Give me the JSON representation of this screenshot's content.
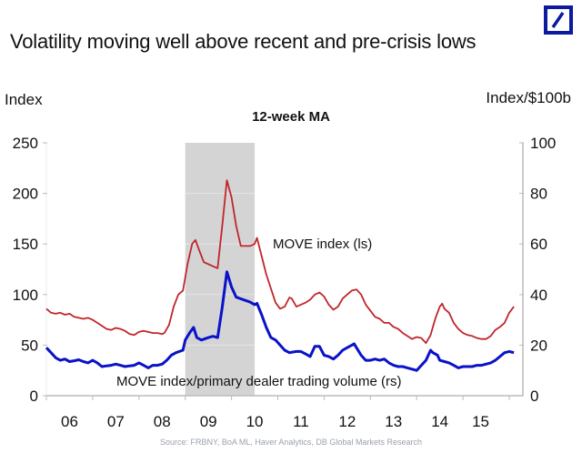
{
  "header": {
    "title": "Volatility moving well above recent and pre-crisis lows",
    "logo": "deutsche-bank-logo"
  },
  "footer": {
    "source": "Source: FRBNY, BoA ML, Haver Analytics, DB Global Markets Research"
  },
  "chart_data": {
    "type": "line",
    "title": "12-week MA",
    "ylabel_left": "Index",
    "ylabel_right": "Index/$100b",
    "ylim_left": [
      0,
      250
    ],
    "ylim_right": [
      0,
      100
    ],
    "yticks_left": [
      "0",
      "50",
      "100",
      "150",
      "200",
      "250"
    ],
    "yticks_right": [
      "0",
      "20",
      "40",
      "60",
      "80",
      "100"
    ],
    "xlim": [
      2005.0,
      2015.3
    ],
    "xticks": [
      "06",
      "07",
      "08",
      "09",
      "10",
      "11",
      "12",
      "13",
      "14",
      "15"
    ],
    "shaded_region": {
      "from": 2008.0,
      "to": 2009.5,
      "color": "#d4d4d4",
      "label": "crisis"
    },
    "grid": false,
    "series": [
      {
        "name": "MOVE index (ls)",
        "axis": "left",
        "color": "#c0262b",
        "annotation": "MOVE index (ls)",
        "points": [
          [
            2005.0,
            86
          ],
          [
            2005.1,
            82
          ],
          [
            2005.2,
            81
          ],
          [
            2005.3,
            82
          ],
          [
            2005.4,
            80
          ],
          [
            2005.5,
            81
          ],
          [
            2005.6,
            78
          ],
          [
            2005.7,
            77
          ],
          [
            2005.8,
            76
          ],
          [
            2005.9,
            77
          ],
          [
            2006.0,
            75
          ],
          [
            2006.1,
            72
          ],
          [
            2006.2,
            69
          ],
          [
            2006.3,
            66
          ],
          [
            2006.4,
            65
          ],
          [
            2006.5,
            67
          ],
          [
            2006.6,
            66
          ],
          [
            2006.7,
            64
          ],
          [
            2006.8,
            61
          ],
          [
            2006.9,
            60
          ],
          [
            2007.0,
            63
          ],
          [
            2007.1,
            64
          ],
          [
            2007.2,
            63
          ],
          [
            2007.3,
            62
          ],
          [
            2007.4,
            62
          ],
          [
            2007.5,
            61
          ],
          [
            2007.55,
            62
          ],
          [
            2007.65,
            70
          ],
          [
            2007.75,
            88
          ],
          [
            2007.85,
            100
          ],
          [
            2007.95,
            104
          ],
          [
            2008.05,
            130
          ],
          [
            2008.15,
            150
          ],
          [
            2008.22,
            154
          ],
          [
            2008.3,
            144
          ],
          [
            2008.4,
            132
          ],
          [
            2008.5,
            130
          ],
          [
            2008.6,
            128
          ],
          [
            2008.7,
            126
          ],
          [
            2008.8,
            168
          ],
          [
            2008.9,
            213
          ],
          [
            2009.0,
            196
          ],
          [
            2009.1,
            168
          ],
          [
            2009.2,
            148
          ],
          [
            2009.3,
            148
          ],
          [
            2009.4,
            148
          ],
          [
            2009.5,
            150
          ],
          [
            2009.55,
            156
          ],
          [
            2009.65,
            138
          ],
          [
            2009.75,
            120
          ],
          [
            2009.85,
            106
          ],
          [
            2009.95,
            92
          ],
          [
            2010.05,
            86
          ],
          [
            2010.15,
            88
          ],
          [
            2010.25,
            97
          ],
          [
            2010.3,
            96
          ],
          [
            2010.4,
            88
          ],
          [
            2010.5,
            90
          ],
          [
            2010.6,
            92
          ],
          [
            2010.7,
            95
          ],
          [
            2010.8,
            100
          ],
          [
            2010.9,
            102
          ],
          [
            2011.0,
            98
          ],
          [
            2011.1,
            90
          ],
          [
            2011.2,
            85
          ],
          [
            2011.3,
            88
          ],
          [
            2011.4,
            96
          ],
          [
            2011.5,
            100
          ],
          [
            2011.6,
            104
          ],
          [
            2011.7,
            105
          ],
          [
            2011.8,
            100
          ],
          [
            2011.9,
            90
          ],
          [
            2012.0,
            84
          ],
          [
            2012.1,
            78
          ],
          [
            2012.2,
            76
          ],
          [
            2012.3,
            72
          ],
          [
            2012.4,
            72
          ],
          [
            2012.5,
            68
          ],
          [
            2012.6,
            66
          ],
          [
            2012.7,
            62
          ],
          [
            2012.8,
            59
          ],
          [
            2012.9,
            56
          ],
          [
            2013.0,
            58
          ],
          [
            2013.1,
            57
          ],
          [
            2013.2,
            52
          ],
          [
            2013.3,
            60
          ],
          [
            2013.4,
            76
          ],
          [
            2013.5,
            88
          ],
          [
            2013.55,
            91
          ],
          [
            2013.6,
            86
          ],
          [
            2013.7,
            82
          ],
          [
            2013.8,
            72
          ],
          [
            2013.9,
            66
          ],
          [
            2014.0,
            62
          ],
          [
            2014.1,
            60
          ],
          [
            2014.2,
            59
          ],
          [
            2014.3,
            57
          ],
          [
            2014.4,
            56
          ],
          [
            2014.5,
            56
          ],
          [
            2014.6,
            59
          ],
          [
            2014.7,
            65
          ],
          [
            2014.8,
            68
          ],
          [
            2014.9,
            72
          ],
          [
            2015.0,
            82
          ],
          [
            2015.1,
            88
          ]
        ]
      },
      {
        "name": "MOVE index/primary dealer trading volume (rs)",
        "axis": "right",
        "color": "#0a12c8",
        "annotation": "MOVE index/primary dealer trading volume (rs)",
        "points": [
          [
            2005.0,
            19
          ],
          [
            2005.1,
            17
          ],
          [
            2005.2,
            15
          ],
          [
            2005.3,
            14
          ],
          [
            2005.4,
            14.5
          ],
          [
            2005.5,
            13.5
          ],
          [
            2005.6,
            13.8
          ],
          [
            2005.7,
            14.2
          ],
          [
            2005.8,
            13.5
          ],
          [
            2005.9,
            13
          ],
          [
            2006.0,
            14
          ],
          [
            2006.1,
            13
          ],
          [
            2006.2,
            11.5
          ],
          [
            2006.3,
            11.8
          ],
          [
            2006.4,
            12
          ],
          [
            2006.5,
            12.5
          ],
          [
            2006.6,
            12
          ],
          [
            2006.7,
            11.5
          ],
          [
            2006.8,
            11.8
          ],
          [
            2006.9,
            12
          ],
          [
            2007.0,
            13
          ],
          [
            2007.1,
            12
          ],
          [
            2007.2,
            11
          ],
          [
            2007.3,
            12
          ],
          [
            2007.4,
            12
          ],
          [
            2007.5,
            12.5
          ],
          [
            2007.6,
            14
          ],
          [
            2007.7,
            16
          ],
          [
            2007.8,
            17
          ],
          [
            2007.95,
            18
          ],
          [
            2008.0,
            22
          ],
          [
            2008.1,
            25
          ],
          [
            2008.18,
            27
          ],
          [
            2008.25,
            23
          ],
          [
            2008.35,
            22
          ],
          [
            2008.5,
            23
          ],
          [
            2008.6,
            23.5
          ],
          [
            2008.7,
            23
          ],
          [
            2008.8,
            35
          ],
          [
            2008.9,
            49
          ],
          [
            2009.0,
            43
          ],
          [
            2009.1,
            39
          ],
          [
            2009.25,
            38
          ],
          [
            2009.4,
            37
          ],
          [
            2009.5,
            36
          ],
          [
            2009.55,
            36.5
          ],
          [
            2009.65,
            32
          ],
          [
            2009.75,
            27
          ],
          [
            2009.85,
            23
          ],
          [
            2009.95,
            22
          ],
          [
            2010.05,
            20
          ],
          [
            2010.15,
            18
          ],
          [
            2010.25,
            17
          ],
          [
            2010.4,
            17.5
          ],
          [
            2010.5,
            17.5
          ],
          [
            2010.6,
            16.5
          ],
          [
            2010.7,
            15.5
          ],
          [
            2010.8,
            19.5
          ],
          [
            2010.9,
            19.5
          ],
          [
            2011.0,
            16
          ],
          [
            2011.1,
            15.5
          ],
          [
            2011.2,
            14.5
          ],
          [
            2011.3,
            16
          ],
          [
            2011.4,
            18
          ],
          [
            2011.5,
            19
          ],
          [
            2011.6,
            20
          ],
          [
            2011.65,
            20.5
          ],
          [
            2011.7,
            19
          ],
          [
            2011.8,
            16
          ],
          [
            2011.9,
            14
          ],
          [
            2012.0,
            14
          ],
          [
            2012.1,
            14.5
          ],
          [
            2012.2,
            14
          ],
          [
            2012.3,
            14.5
          ],
          [
            2012.4,
            13
          ],
          [
            2012.5,
            12
          ],
          [
            2012.6,
            11.5
          ],
          [
            2012.7,
            11.5
          ],
          [
            2012.8,
            11
          ],
          [
            2012.9,
            10.5
          ],
          [
            2013.0,
            10
          ],
          [
            2013.1,
            12
          ],
          [
            2013.2,
            14
          ],
          [
            2013.3,
            18
          ],
          [
            2013.35,
            17
          ],
          [
            2013.45,
            16
          ],
          [
            2013.5,
            14
          ],
          [
            2013.6,
            13.5
          ],
          [
            2013.7,
            13
          ],
          [
            2013.8,
            12
          ],
          [
            2013.9,
            11
          ],
          [
            2014.0,
            11.5
          ],
          [
            2014.1,
            11.5
          ],
          [
            2014.2,
            11.5
          ],
          [
            2014.3,
            12
          ],
          [
            2014.4,
            12
          ],
          [
            2014.5,
            12.5
          ],
          [
            2014.6,
            13
          ],
          [
            2014.7,
            14
          ],
          [
            2014.8,
            15.5
          ],
          [
            2014.9,
            17
          ],
          [
            2015.0,
            17.5
          ],
          [
            2015.1,
            17
          ]
        ]
      }
    ]
  }
}
